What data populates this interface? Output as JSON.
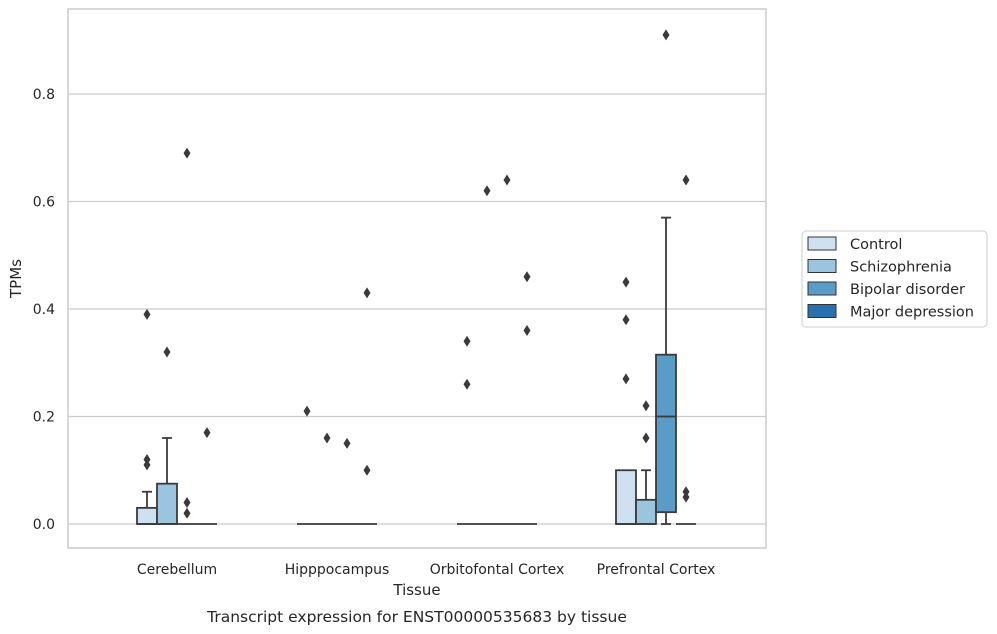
{
  "chart_data": {
    "type": "box",
    "caption": "Transcript expression for ENST00000535683 by tissue",
    "xlabel": "Tissue",
    "ylabel": "TPMs",
    "ylim": [
      -0.045,
      0.955
    ],
    "yticks": [
      0.0,
      0.2,
      0.4,
      0.6,
      0.8
    ],
    "ytick_labels": [
      "0.0",
      "0.2",
      "0.4",
      "0.6",
      "0.8"
    ],
    "grid": "horizontal",
    "legend_position": "right",
    "categories": [
      "Cerebellum",
      "Hipppocampus",
      "Orbitofontal Cortex",
      "Prefrontal Cortex"
    ],
    "series": [
      {
        "name": "Control",
        "color": "#cfe1f0",
        "boxes": [
          {
            "q1": 0.0,
            "median": 0.0,
            "q3": 0.03,
            "whislo": 0.0,
            "whishi": 0.06,
            "fliers": [
              0.11,
              0.12,
              0.39
            ]
          },
          {
            "q1": 0.0,
            "median": 0.0,
            "q3": 0.0,
            "whislo": 0.0,
            "whishi": 0.0,
            "fliers": [
              0.21
            ]
          },
          {
            "q1": 0.0,
            "median": 0.0,
            "q3": 0.0,
            "whislo": 0.0,
            "whishi": 0.0,
            "fliers": [
              0.26,
              0.34
            ]
          },
          {
            "q1": 0.0,
            "median": 0.0,
            "q3": 0.1,
            "whislo": 0.0,
            "whishi": 0.1,
            "fliers": [
              0.27,
              0.38,
              0.45
            ]
          }
        ]
      },
      {
        "name": "Schizophrenia",
        "color": "#9ac4e0",
        "boxes": [
          {
            "q1": 0.0,
            "median": 0.0,
            "q3": 0.075,
            "whislo": 0.0,
            "whishi": 0.16,
            "fliers": [
              0.32
            ]
          },
          {
            "q1": 0.0,
            "median": 0.0,
            "q3": 0.0,
            "whislo": 0.0,
            "whishi": 0.0,
            "fliers": [
              0.16
            ]
          },
          {
            "q1": 0.0,
            "median": 0.0,
            "q3": 0.0,
            "whislo": 0.0,
            "whishi": 0.0,
            "fliers": [
              0.62
            ]
          },
          {
            "q1": 0.0,
            "median": 0.0,
            "q3": 0.045,
            "whislo": 0.0,
            "whishi": 0.1,
            "fliers": [
              0.16,
              0.22
            ]
          }
        ]
      },
      {
        "name": "Bipolar disorder",
        "color": "#5b9bc8",
        "boxes": [
          {
            "q1": 0.0,
            "median": 0.0,
            "q3": 0.0,
            "whislo": 0.0,
            "whishi": 0.0,
            "fliers": [
              0.02,
              0.04,
              0.69
            ]
          },
          {
            "q1": 0.0,
            "median": 0.0,
            "q3": 0.0,
            "whislo": 0.0,
            "whishi": 0.0,
            "fliers": [
              0.15
            ]
          },
          {
            "q1": 0.0,
            "median": 0.0,
            "q3": 0.0,
            "whislo": 0.0,
            "whishi": 0.0,
            "fliers": [
              0.64
            ]
          },
          {
            "q1": 0.022,
            "median": 0.2,
            "q3": 0.315,
            "whislo": 0.0,
            "whishi": 0.57,
            "fliers": [
              0.91
            ]
          }
        ]
      },
      {
        "name": "Major depression",
        "color": "#2d6fad",
        "boxes": [
          {
            "q1": 0.0,
            "median": 0.0,
            "q3": 0.0,
            "whislo": 0.0,
            "whishi": 0.0,
            "fliers": [
              0.17
            ]
          },
          {
            "q1": 0.0,
            "median": 0.0,
            "q3": 0.0,
            "whislo": 0.0,
            "whishi": 0.0,
            "fliers": [
              0.1,
              0.43
            ]
          },
          {
            "q1": 0.0,
            "median": 0.0,
            "q3": 0.0,
            "whislo": 0.0,
            "whishi": 0.0,
            "fliers": [
              0.36,
              0.46
            ]
          },
          {
            "q1": 0.0,
            "median": 0.0,
            "q3": 0.0,
            "whislo": 0.0,
            "whishi": 0.0,
            "fliers": [
              0.05,
              0.06,
              0.64
            ]
          }
        ]
      }
    ]
  },
  "colors": {
    "axis": "#cccccc",
    "grid": "#cccccc",
    "box_edge": "#3a3a3a",
    "flier": "#3a3a3a"
  }
}
